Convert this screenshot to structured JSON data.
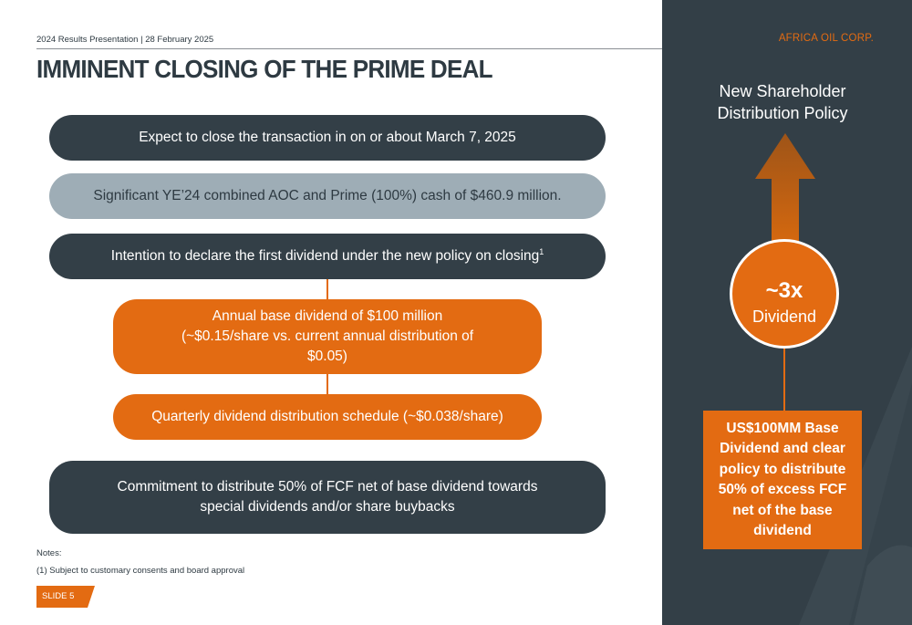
{
  "header": {
    "presentation": "2024 Results Presentation",
    "separator": "|",
    "date": "28 February 2025",
    "brand": "AFRICA OIL CORP."
  },
  "title": "IMMINENT CLOSING OF THE PRIME DEAL",
  "pills": [
    {
      "text": "Expect to close the transaction in on or about March 7, 2025",
      "style": "dark"
    },
    {
      "text": "Significant YE’24 combined AOC and Prime (100%) cash of $460.9 million.",
      "style": "gray"
    },
    {
      "text": "Intention to declare the first dividend under the new policy on closing",
      "sup": "1",
      "style": "dark"
    },
    {
      "text": "Annual base dividend of $100 million (~$0.15/share vs. current annual distribution of $0.05)",
      "style": "orange"
    },
    {
      "text": "Quarterly dividend distribution schedule (~$0.038/share)",
      "style": "orange"
    },
    {
      "text": "Commitment to distribute 50% of FCF net of base dividend towards special dividends and/or share buybacks",
      "style": "dark"
    }
  ],
  "panel": {
    "title_line1": "New Shareholder",
    "title_line2": "Distribution Policy",
    "multiplier": "~3x",
    "multiplier_label": "Dividend",
    "box_text": "US$100MM Base Dividend and clear policy to distribute 50% of excess FCF net of the base dividend"
  },
  "notes": {
    "heading": "Notes:",
    "item": "(1) Subject to customary consents and board approval"
  },
  "slide_label": "SLIDE 5",
  "colors": {
    "accent": "#e36b12",
    "dark": "#333f47",
    "gray": "#9eadb6",
    "text": "#2e3a42"
  }
}
